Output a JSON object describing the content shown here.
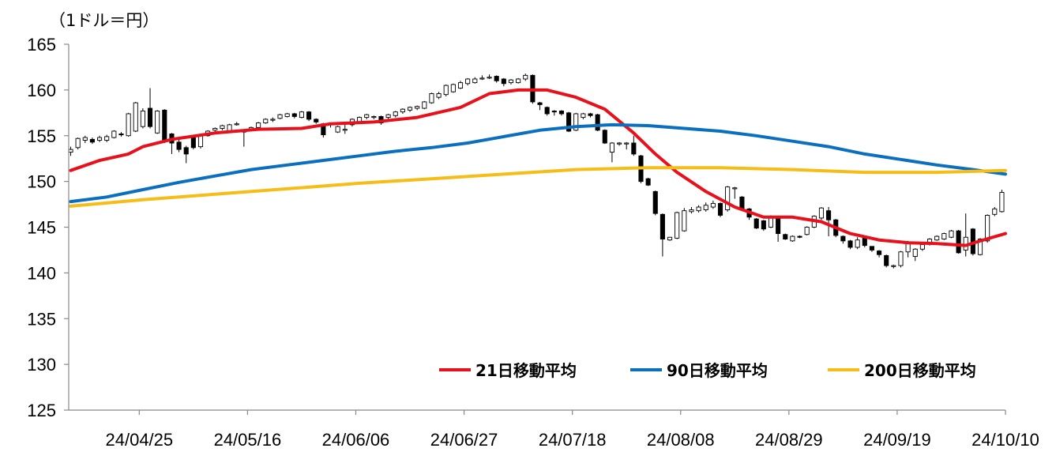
{
  "chart_data": {
    "type": "line",
    "unit_label": "（1ドル＝円）",
    "title": "",
    "xlabel": "",
    "ylabel": "",
    "ylim": [
      125,
      165
    ],
    "y_ticks": [
      125,
      130,
      135,
      140,
      145,
      150,
      155,
      160,
      165
    ],
    "x_tick_labels": [
      "24/04/25",
      "24/05/16",
      "24/06/06",
      "24/06/27",
      "24/07/18",
      "24/08/08",
      "24/08/29",
      "24/09/19",
      "24/10/10"
    ],
    "x_tick_positions": [
      9.5,
      24.5,
      39.5,
      54.5,
      69.5,
      84.5,
      99.5,
      114.5,
      129.5
    ],
    "x_range": [
      0,
      129.5
    ],
    "grid": false,
    "legend_placement": "bottom-right",
    "series": [
      {
        "name": "21日移動平均",
        "color": "#e8101a",
        "x": [
          0,
          4,
          8,
          10,
          14,
          20,
          26,
          32,
          36,
          42,
          48,
          54,
          58,
          62,
          66,
          70,
          74,
          78,
          81,
          84,
          88,
          92,
          96,
          100,
          104,
          108,
          112,
          116,
          120,
          124,
          126,
          129.5
        ],
        "values": [
          151.2,
          152.3,
          153.0,
          153.8,
          154.6,
          155.3,
          155.7,
          155.8,
          156.3,
          156.5,
          157.0,
          158.1,
          159.6,
          160.0,
          160.0,
          159.2,
          157.9,
          155.3,
          153.0,
          151.0,
          148.9,
          147.2,
          146.1,
          146.1,
          145.6,
          144.3,
          143.6,
          143.3,
          143.2,
          143.0,
          143.5,
          144.3
        ]
      },
      {
        "name": "90日移動平均",
        "color": "#0a6fbf",
        "x": [
          0,
          5,
          10,
          15,
          20,
          25,
          30,
          35,
          40,
          45,
          50,
          55,
          60,
          65,
          70,
          75,
          80,
          85,
          90,
          95,
          100,
          105,
          110,
          115,
          120,
          125,
          129.5
        ],
        "values": [
          147.8,
          148.3,
          149.1,
          149.9,
          150.6,
          151.3,
          151.8,
          152.3,
          152.8,
          153.3,
          153.7,
          154.2,
          154.9,
          155.6,
          156.0,
          156.2,
          156.1,
          155.8,
          155.5,
          155.0,
          154.4,
          153.8,
          153.0,
          152.4,
          151.8,
          151.3,
          150.8
        ]
      },
      {
        "name": "200日移動平均",
        "color": "#f5bd16",
        "x": [
          0,
          10,
          20,
          30,
          40,
          50,
          60,
          70,
          80,
          90,
          100,
          110,
          120,
          129.5
        ],
        "values": [
          147.3,
          148.0,
          148.6,
          149.2,
          149.8,
          150.3,
          150.8,
          151.3,
          151.5,
          151.5,
          151.3,
          151.0,
          151.0,
          151.2
        ]
      }
    ],
    "candles": {
      "dates_index": [
        0,
        1,
        2,
        3,
        4,
        5,
        6,
        7,
        8,
        9,
        10,
        11,
        12,
        13,
        14,
        15,
        16,
        17,
        18,
        19,
        20,
        21,
        22,
        23,
        24,
        25,
        26,
        27,
        28,
        29,
        30,
        31,
        32,
        33,
        34,
        35,
        36,
        37,
        38,
        39,
        40,
        41,
        42,
        43,
        44,
        45,
        46,
        47,
        48,
        49,
        50,
        51,
        52,
        53,
        54,
        55,
        56,
        57,
        58,
        59,
        60,
        61,
        62,
        63,
        64,
        65,
        66,
        67,
        68,
        69,
        70,
        71,
        72,
        73,
        74,
        75,
        76,
        77,
        78,
        79,
        80,
        81,
        82,
        83,
        84,
        85,
        86,
        87,
        88,
        89,
        90,
        91,
        92,
        93,
        94,
        95,
        96,
        97,
        98,
        99,
        100,
        101,
        102,
        103,
        104,
        105,
        106,
        107,
        108,
        109,
        110,
        111,
        112,
        113,
        114,
        115,
        116,
        117,
        118,
        119,
        120,
        121,
        122,
        123,
        124,
        125,
        126,
        127,
        128,
        129
      ],
      "open": [
        153.2,
        153.7,
        154.5,
        154.6,
        154.5,
        154.5,
        154.8,
        155.2,
        155.0,
        155.5,
        156.0,
        158.0,
        155.3,
        157.8,
        155.2,
        154.3,
        153.7,
        154.8,
        153.8,
        155.0,
        155.6,
        155.8,
        155.5,
        156.3,
        155.6,
        155.6,
        155.9,
        156.4,
        156.8,
        156.9,
        157.1,
        157.4,
        157.0,
        157.6,
        156.8,
        156.3,
        156.3,
        155.4,
        155.7,
        156.2,
        156.4,
        157.0,
        157.0,
        157.1,
        157.0,
        157.2,
        157.6,
        157.8,
        158.0,
        158.0,
        158.6,
        159.2,
        159.5,
        159.8,
        160.2,
        160.7,
        160.8,
        161.3,
        161.4,
        161.5,
        161.2,
        160.8,
        160.8,
        161.2,
        161.6,
        158.6,
        158.1,
        157.7,
        157.7,
        157.5,
        155.6,
        157.0,
        157.4,
        157.3,
        155.6,
        153.2,
        154.1,
        154.2,
        154.2,
        152.8,
        150.3,
        148.9,
        146.4,
        143.6,
        143.8,
        144.6,
        146.7,
        146.8,
        146.9,
        147.2,
        147.6,
        146.9,
        149.2,
        148.3,
        147.0,
        145.9,
        145.7,
        145.0,
        146.1,
        144.2,
        143.5,
        144.0,
        144.2,
        145.0,
        146.0,
        146.8,
        145.8,
        144.0,
        143.5,
        142.8,
        143.8,
        142.9,
        142.4,
        141.9,
        140.7,
        140.8,
        142.3,
        141.8,
        142.6,
        143.2,
        143.6,
        143.7,
        143.9,
        144.6,
        142.5,
        144.8,
        142.0,
        143.5,
        146.4,
        146.7
      ],
      "close": [
        153.5,
        154.7,
        154.8,
        154.3,
        154.8,
        154.9,
        155.5,
        155.1,
        157.4,
        158.6,
        157.7,
        156.0,
        157.7,
        154.4,
        154.2,
        153.5,
        153.0,
        153.7,
        155.0,
        155.5,
        155.8,
        156.1,
        156.2,
        156.3,
        155.4,
        155.9,
        156.4,
        156.8,
        156.8,
        157.3,
        157.4,
        157.1,
        157.6,
        156.8,
        156.5,
        155.1,
        156.2,
        156.0,
        155.7,
        156.8,
        157.0,
        157.3,
        157.1,
        156.4,
        157.3,
        157.6,
        157.9,
        158.1,
        158.2,
        158.7,
        159.6,
        159.6,
        160.5,
        160.6,
        160.8,
        161.2,
        161.2,
        161.3,
        161.4,
        161.0,
        160.7,
        161.1,
        161.2,
        161.6,
        158.7,
        158.4,
        157.4,
        157.6,
        157.4,
        155.5,
        157.4,
        157.4,
        157.2,
        155.6,
        154.2,
        154.2,
        154.2,
        154.2,
        153.0,
        150.0,
        149.6,
        146.5,
        143.7,
        143.9,
        146.6,
        146.8,
        146.9,
        147.2,
        147.4,
        147.6,
        146.3,
        149.4,
        149.3,
        147.0,
        146.1,
        144.9,
        144.8,
        146.2,
        144.3,
        143.7,
        144.0,
        143.9,
        145.0,
        146.2,
        147.1,
        145.8,
        144.1,
        143.5,
        142.8,
        143.6,
        143.0,
        142.5,
        142.0,
        140.8,
        140.8,
        142.3,
        143.4,
        142.6,
        143.1,
        143.7,
        144.0,
        144.3,
        144.6,
        142.2,
        143.9,
        142.1,
        143.7,
        146.3,
        147.0,
        148.8
      ],
      "high": [
        153.8,
        154.8,
        155.0,
        154.8,
        155.0,
        155.1,
        155.6,
        155.4,
        157.5,
        158.7,
        158.0,
        160.2,
        157.8,
        157.9,
        155.3,
        154.6,
        153.9,
        154.9,
        155.1,
        155.6,
        155.9,
        156.2,
        156.3,
        156.5,
        155.7,
        156.0,
        156.5,
        156.9,
        157.0,
        157.4,
        157.5,
        157.5,
        157.7,
        157.7,
        156.9,
        156.4,
        156.4,
        156.1,
        156.2,
        156.9,
        157.1,
        157.4,
        157.2,
        157.2,
        157.4,
        157.7,
        158.0,
        158.2,
        158.3,
        158.8,
        159.7,
        159.8,
        160.6,
        160.7,
        161.0,
        161.3,
        161.4,
        161.6,
        161.7,
        161.6,
        161.3,
        161.2,
        161.3,
        161.8,
        161.7,
        158.7,
        158.2,
        157.8,
        157.8,
        157.6,
        157.5,
        157.5,
        157.5,
        157.4,
        155.7,
        154.3,
        154.3,
        154.3,
        155.0,
        152.9,
        150.4,
        149.0,
        146.5,
        143.8,
        146.7,
        147.1,
        147.2,
        147.4,
        147.7,
        147.9,
        147.7,
        149.5,
        149.4,
        148.4,
        147.1,
        146.0,
        145.8,
        146.3,
        146.2,
        144.3,
        144.1,
        144.1,
        145.1,
        146.3,
        147.2,
        147.2,
        145.9,
        144.1,
        143.6,
        143.9,
        143.9,
        142.9,
        142.5,
        142.0,
        140.9,
        142.4,
        143.5,
        142.7,
        143.3,
        143.8,
        144.1,
        144.4,
        144.7,
        144.7,
        146.5,
        144.9,
        143.8,
        146.4,
        147.2,
        149.1
      ],
      "low": [
        152.8,
        153.5,
        154.2,
        154.1,
        154.3,
        154.3,
        154.7,
        154.9,
        154.9,
        155.4,
        155.8,
        155.8,
        155.2,
        154.2,
        153.0,
        153.2,
        152.0,
        153.5,
        153.6,
        154.9,
        155.4,
        155.6,
        155.4,
        156.1,
        153.8,
        155.5,
        155.8,
        156.3,
        156.5,
        156.8,
        157.0,
        156.9,
        156.9,
        156.6,
        156.3,
        154.8,
        155.9,
        155.3,
        155.2,
        156.0,
        156.3,
        156.8,
        156.8,
        156.2,
        156.8,
        157.0,
        157.4,
        157.6,
        157.8,
        157.9,
        158.5,
        159.0,
        159.3,
        159.7,
        160.1,
        160.5,
        160.7,
        161.1,
        161.2,
        160.8,
        160.4,
        160.6,
        160.7,
        161.0,
        158.5,
        157.8,
        157.2,
        157.2,
        157.2,
        155.4,
        155.5,
        156.8,
        157.0,
        155.5,
        154.1,
        152.1,
        153.9,
        153.5,
        152.8,
        149.8,
        149.5,
        146.3,
        141.8,
        143.5,
        143.7,
        144.5,
        146.5,
        146.6,
        146.7,
        147.0,
        146.1,
        146.7,
        148.1,
        146.8,
        145.8,
        144.8,
        144.6,
        144.9,
        143.4,
        143.6,
        143.4,
        143.8,
        144.1,
        144.9,
        145.8,
        144.0,
        143.9,
        143.2,
        142.6,
        142.6,
        142.8,
        142.3,
        141.7,
        140.6,
        140.5,
        140.6,
        141.7,
        141.3,
        142.4,
        143.0,
        143.5,
        143.6,
        143.8,
        142.1,
        141.8,
        141.9,
        141.9,
        143.3,
        146.2,
        146.6
      ]
    },
    "legend": [
      {
        "label": "21日移動平均",
        "color": "#e8101a"
      },
      {
        "label": "90日移動平均",
        "color": "#0a6fbf"
      },
      {
        "label": "200日移動平均",
        "color": "#f5bd16"
      }
    ]
  }
}
